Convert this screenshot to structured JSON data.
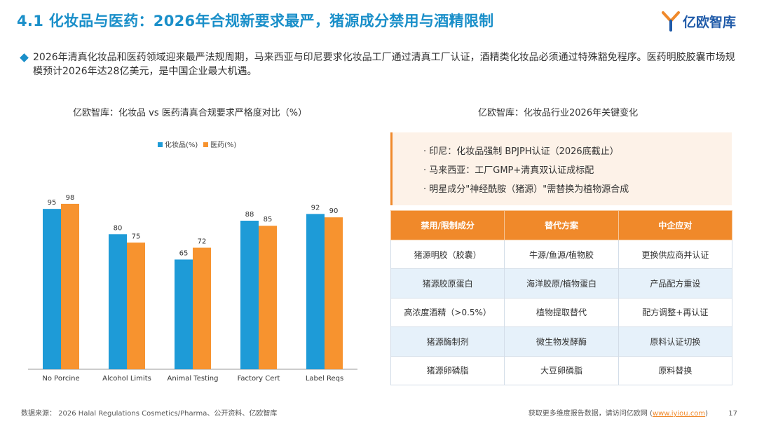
{
  "header": {
    "title": "4.1 化妆品与医药：2026年合规新要求最严，猪源成分禁用与酒精限制",
    "logo_text": "亿欧智库"
  },
  "bullet": {
    "text": "2026年清真化妆品和医药领域迎来最严法规周期，马来西亚与印尼要求化妆品工厂通过清真工厂认证，酒精类化妆品必须通过特殊豁免程序。医药明胶胶囊市场规模预计2026年达28亿美元，是中国企业最大机遇。"
  },
  "left_title": "亿欧智库：化妆品 vs 医药清真合规要求严格度对比（%）",
  "right_title": "亿欧智库：化妆品行业2026年关键变化",
  "chart_data": {
    "type": "bar",
    "categories": [
      "No Porcine",
      "Alcohol Limits",
      "Animal Testing",
      "Factory Cert",
      "Label Reqs"
    ],
    "series": [
      {
        "name": "化妆品(%)",
        "color": "#1e9bd7",
        "values": [
          95,
          80,
          65,
          88,
          92
        ]
      },
      {
        "name": "医药(%)",
        "color": "#f7932f",
        "values": [
          98,
          75,
          72,
          85,
          90
        ]
      }
    ],
    "ylim": [
      0,
      110
    ],
    "legend": "top-left",
    "grid": false
  },
  "changes": [
    "· 印尼：化妆品强制 BPJPH认证（2026底截止）",
    "· 马来西亚：工厂GMP+清真双认证成标配",
    "· 明星成分\"神经酰胺（猪源）\"需替换为植物源合成"
  ],
  "table": {
    "headers": [
      "禁用/限制成分",
      "替代方案",
      "中企应对"
    ],
    "rows": [
      [
        "猪源明胶（胶囊）",
        "牛源/鱼源/植物胶",
        "更换供应商并认证"
      ],
      [
        "猪源胶原蛋白",
        "海洋胶原/植物蛋白",
        "产品配方重设"
      ],
      [
        "高浓度酒精（>0.5%）",
        "植物提取替代",
        "配方调整+再认证"
      ],
      [
        "猪源酶制剂",
        "微生物发酵酶",
        "原料认证切换"
      ],
      [
        "猪源卵磷脂",
        "大豆卵磷脂",
        "原料替换"
      ]
    ]
  },
  "footer": {
    "source": "数据来源： 2026 Halal Regulations Cosmetics/Pharma、公开资料、亿欧智库",
    "more_prefix": "获取更多维度报告数据，请访问亿欧网 (",
    "more_link": "www.iyiou.com",
    "more_suffix": ")",
    "page": "17"
  },
  "colors": {
    "title_blue": "#1a8fc9",
    "accent_orange": "#f0892a",
    "table_alt_row": "#e6f1fa"
  }
}
